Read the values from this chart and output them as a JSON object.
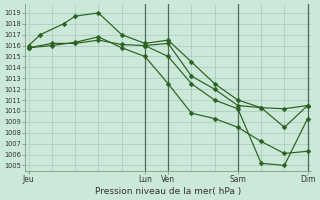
{
  "background_color": "#cce8d8",
  "grid_color": "#a8c8c0",
  "line_color": "#2a6020",
  "xlabel": "Pression niveau de la mer( hPa )",
  "ylim_min": 1004.5,
  "ylim_max": 1019.8,
  "yticks": [
    1005,
    1006,
    1007,
    1008,
    1009,
    1010,
    1011,
    1012,
    1013,
    1014,
    1015,
    1016,
    1017,
    1018,
    1019
  ],
  "xtick_labels": [
    "Jeu",
    "Lun",
    "Ven",
    "Sam",
    "Dim"
  ],
  "xtick_positions": [
    0,
    5,
    6,
    9,
    12
  ],
  "vline_positions": [
    5,
    6,
    9,
    12
  ],
  "total_x": 12,
  "line1_x": [
    0,
    0.5,
    1.5,
    2.0,
    3.0,
    4.0,
    5.0,
    6.0,
    7.0,
    8.0,
    9.0,
    10.0,
    11.0,
    12.0
  ],
  "line1_y": [
    1016.0,
    1017.0,
    1018.0,
    1018.7,
    1019.0,
    1017.0,
    1016.2,
    1016.5,
    1014.5,
    1012.5,
    1011.0,
    1010.3,
    1008.5,
    1010.5
  ],
  "line2_x": [
    0,
    1.0,
    2.0,
    3.0,
    4.0,
    5.0,
    6.0,
    7.0,
    8.0,
    9.0,
    10.0,
    11.0,
    12.0
  ],
  "line2_y": [
    1015.8,
    1016.2,
    1016.2,
    1016.5,
    1016.1,
    1016.0,
    1016.2,
    1013.2,
    1012.0,
    1010.5,
    1010.3,
    1010.2,
    1010.5
  ],
  "line3_x": [
    0,
    1.0,
    2.0,
    3.0,
    4.0,
    5.0,
    6.0,
    7.0,
    8.0,
    9.0,
    10.0,
    11.0,
    12.0
  ],
  "line3_y": [
    1015.8,
    1016.0,
    1016.3,
    1016.8,
    1015.8,
    1015.0,
    1012.5,
    1009.8,
    1009.3,
    1008.5,
    1007.2,
    1006.1,
    1006.3
  ],
  "line4_x": [
    5.0,
    6.0,
    7.0,
    8.0,
    9.0,
    10.0,
    11.0,
    12.0
  ],
  "line4_y": [
    1016.0,
    1015.0,
    1012.5,
    1011.0,
    1010.2,
    1005.2,
    1005.0,
    1009.3
  ]
}
